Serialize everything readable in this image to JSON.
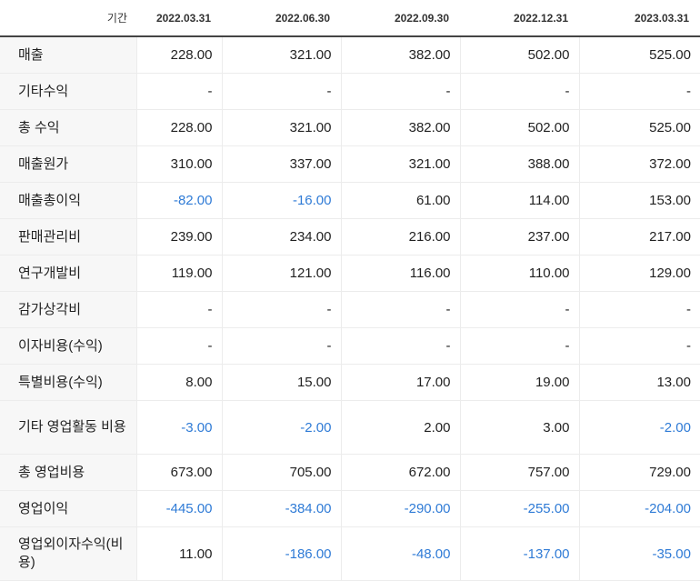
{
  "header": {
    "label": "기간",
    "periods": [
      "2022.03.31",
      "2022.06.30",
      "2022.09.30",
      "2022.12.31",
      "2023.03.31"
    ]
  },
  "rows": [
    {
      "label": "매출",
      "values": [
        "228.00",
        "321.00",
        "382.00",
        "502.00",
        "525.00"
      ]
    },
    {
      "label": "기타수익",
      "values": [
        "-",
        "-",
        "-",
        "-",
        "-"
      ]
    },
    {
      "label": "총 수익",
      "values": [
        "228.00",
        "321.00",
        "382.00",
        "502.00",
        "525.00"
      ]
    },
    {
      "label": "매출원가",
      "values": [
        "310.00",
        "337.00",
        "321.00",
        "388.00",
        "372.00"
      ]
    },
    {
      "label": "매출총이익",
      "values": [
        "-82.00",
        "-16.00",
        "61.00",
        "114.00",
        "153.00"
      ]
    },
    {
      "label": "판매관리비",
      "values": [
        "239.00",
        "234.00",
        "216.00",
        "237.00",
        "217.00"
      ]
    },
    {
      "label": "연구개발비",
      "values": [
        "119.00",
        "121.00",
        "116.00",
        "110.00",
        "129.00"
      ]
    },
    {
      "label": "감가상각비",
      "values": [
        "-",
        "-",
        "-",
        "-",
        "-"
      ]
    },
    {
      "label": "이자비용(수익)",
      "values": [
        "-",
        "-",
        "-",
        "-",
        "-"
      ]
    },
    {
      "label": "특별비용(수익)",
      "values": [
        "8.00",
        "15.00",
        "17.00",
        "19.00",
        "13.00"
      ]
    },
    {
      "label": "기타 영업활동 비용",
      "values": [
        "-3.00",
        "-2.00",
        "2.00",
        "3.00",
        "-2.00"
      ]
    },
    {
      "label": "총 영업비용",
      "values": [
        "673.00",
        "705.00",
        "672.00",
        "757.00",
        "729.00"
      ]
    },
    {
      "label": "영업이익",
      "values": [
        "-445.00",
        "-384.00",
        "-290.00",
        "-255.00",
        "-204.00"
      ]
    },
    {
      "label": "영업외이자수익(비용)",
      "values": [
        "11.00",
        "-186.00",
        "-48.00",
        "-137.00",
        "-35.00"
      ]
    }
  ],
  "colors": {
    "negative": "#2f7bd6",
    "label_bg": "#f7f7f7"
  }
}
